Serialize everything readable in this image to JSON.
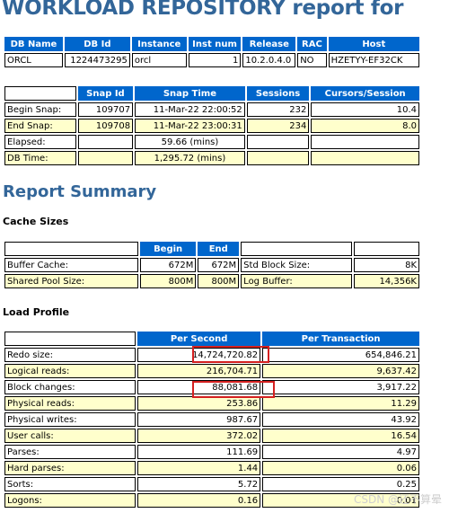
{
  "report_title": "WORKLOAD REPOSITORY report for",
  "db_table": {
    "headers": [
      "DB Name",
      "DB Id",
      "Instance",
      "Inst num",
      "Release",
      "RAC",
      "Host"
    ],
    "row": [
      "ORCL",
      "1224473295",
      "orcl",
      "1",
      "10.2.0.4.0",
      "NO",
      "HZETYY-EF32CK"
    ]
  },
  "snap_table": {
    "headers": [
      "",
      "Snap Id",
      "Snap Time",
      "Sessions",
      "Cursors/Session"
    ],
    "rows": [
      [
        "Begin Snap:",
        "109707",
        "11-Mar-22 22:00:52",
        "232",
        "10.4"
      ],
      [
        "End Snap:",
        "109708",
        "11-Mar-22 23:00:31",
        "234",
        "8.0"
      ],
      [
        "Elapsed:",
        "",
        "59.66 (mins)",
        "",
        ""
      ],
      [
        "DB Time:",
        "",
        "1,295.72 (mins)",
        "",
        ""
      ]
    ]
  },
  "report_summary_heading": "Report Summary",
  "cache_sizes": {
    "heading": "Cache Sizes",
    "headers": [
      "",
      "Begin",
      "End",
      "",
      ""
    ],
    "rows": [
      [
        "Buffer Cache:",
        "672M",
        "672M",
        "Std Block Size:",
        "8K"
      ],
      [
        "Shared Pool Size:",
        "800M",
        "800M",
        "Log Buffer:",
        "14,356K"
      ]
    ]
  },
  "load_profile": {
    "heading": "Load Profile",
    "headers": [
      "",
      "Per Second",
      "Per Transaction"
    ],
    "rows": [
      [
        "Redo size:",
        "14,724,720.82",
        "654,846.21"
      ],
      [
        "Logical reads:",
        "216,704.71",
        "9,637.42"
      ],
      [
        "Block changes:",
        "88,081.68",
        "3,917.22"
      ],
      [
        "Physical reads:",
        "253.86",
        "11.29"
      ],
      [
        "Physical writes:",
        "987.67",
        "43.92"
      ],
      [
        "User calls:",
        "372.02",
        "16.54"
      ],
      [
        "Parses:",
        "111.69",
        "4.97"
      ],
      [
        "Hard parses:",
        "1.44",
        "0.06"
      ],
      [
        "Sorts:",
        "5.72",
        "0.25"
      ],
      [
        "Logons:",
        "0.16",
        "0.01"
      ]
    ]
  },
  "watermark": "CSDN @还不算晕",
  "colors": {
    "title": "#336699",
    "header_bg": "#0066CC",
    "alt_row_bg": "#FFFFCC",
    "highlight_box": "#d42020"
  }
}
